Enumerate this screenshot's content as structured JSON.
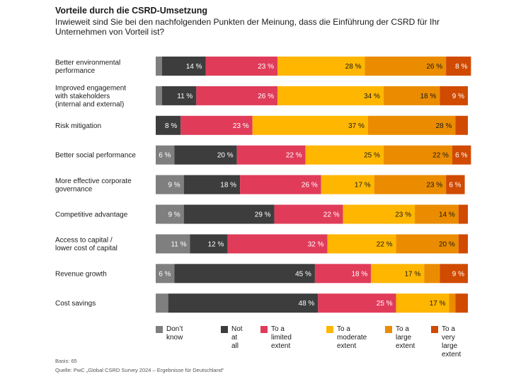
{
  "title": "Vorteile durch die CSRD-Umsetzung",
  "subtitle": "Inwieweit sind Sie bei den nachfolgenden Punkten der Meinung, dass die Einführung der CSRD für Ihr Unternehmen von Vorteil ist?",
  "basis": "Basis: 65",
  "source": "Quelle: PwC „Global CSRD Survey 2024 – Ergebnisse für Deutschland“",
  "chart_data": {
    "type": "bar",
    "orientation": "horizontal",
    "stacked": true,
    "title": "Vorteile durch die CSRD-Umsetzung",
    "xlim": [
      0,
      100
    ],
    "unit": "%",
    "categories": [
      [
        "Better environmental",
        "performance"
      ],
      [
        "Improved engagement",
        "with stakeholders",
        "(internal and external)"
      ],
      [
        "Risk mitigation"
      ],
      [
        "Better social performance"
      ],
      [
        "More effective corporate",
        "governance"
      ],
      [
        "Competitive advantage"
      ],
      [
        "Access to capital /",
        "lower cost of capital"
      ],
      [
        "Revenue growth"
      ],
      [
        "Cost savings"
      ]
    ],
    "series": [
      {
        "name": "Don’t know",
        "legend": "Don’t know",
        "color": "#7f7f7f",
        "values": [
          2,
          2,
          0,
          6,
          9,
          9,
          11,
          6,
          4
        ],
        "labels": [
          "",
          "",
          "",
          "6 %",
          "9 %",
          "9 %",
          "11 %",
          "6 %",
          ""
        ]
      },
      {
        "name": "Not at all",
        "legend": "Not\nat all",
        "color": "#3d3d3d",
        "values": [
          14,
          11,
          8,
          20,
          18,
          29,
          12,
          45,
          48
        ],
        "labels": [
          "14 %",
          "11 %",
          "8 %",
          "20 %",
          "18 %",
          "29 %",
          "12 %",
          "45 %",
          "48 %"
        ]
      },
      {
        "name": "To a limited extent",
        "legend": "To a limited\nextent",
        "color": "#e03c5a",
        "values": [
          23,
          26,
          23,
          22,
          26,
          22,
          32,
          18,
          25
        ],
        "labels": [
          "23 %",
          "26 %",
          "23 %",
          "22 %",
          "26 %",
          "22 %",
          "32 %",
          "18 %",
          "25 %"
        ]
      },
      {
        "name": "To a moderate extent",
        "legend": "To a\nmoderate\nextent",
        "color": "#ffb600",
        "values": [
          28,
          34,
          37,
          25,
          17,
          23,
          22,
          17,
          17
        ],
        "labels": [
          "28 %",
          "34 %",
          "37 %",
          "25 %",
          "17 %",
          "23 %",
          "22 %",
          "17 %",
          "17 %"
        ]
      },
      {
        "name": "To a large extent",
        "legend": "To a\nlarge\nextent",
        "color": "#eb8c00",
        "values": [
          26,
          18,
          28,
          22,
          23,
          14,
          20,
          5,
          2
        ],
        "labels": [
          "26 %",
          "18 %",
          "28 %",
          "22 %",
          "23 %",
          "14 %",
          "20 %",
          "",
          ""
        ]
      },
      {
        "name": "To a very large extent",
        "legend": "To a\nvery large\nextent",
        "color": "#d04a02",
        "values": [
          8,
          9,
          4,
          6,
          6,
          3,
          3,
          9,
          4
        ],
        "labels": [
          "8 %",
          "9 %",
          "",
          "6 %",
          "6 %",
          "",
          "",
          "9 %",
          ""
        ]
      }
    ]
  }
}
